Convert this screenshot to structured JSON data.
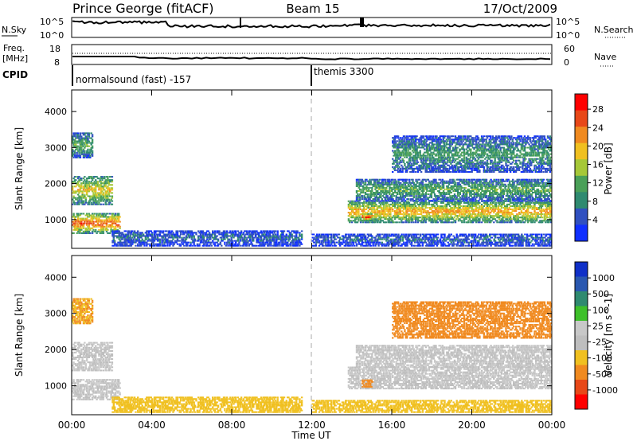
{
  "header": {
    "station": "Prince George (fitACF)",
    "beam": "Beam 15",
    "date": "17/Oct/2009"
  },
  "panels": {
    "nsky": {
      "label": "N.Sky",
      "tick_top": "10^5",
      "tick_bottom": "10^0",
      "right_label": "N.Search",
      "right_tick_top": "10^5",
      "right_tick_bottom": "10^0"
    },
    "freq": {
      "label_line1": "Freq.",
      "label_line2": "[MHz]",
      "tick_top": "18",
      "tick_bottom": "8",
      "right_label": "Nave",
      "right_tick_top": "60",
      "right_tick_bottom": "0"
    },
    "cpid": {
      "label": "CPID",
      "modes": [
        {
          "text": "normalsound (fast) -157",
          "start_hour": 0
        },
        {
          "text": "themis 3300",
          "start_hour": 12
        }
      ]
    }
  },
  "colors": {
    "power_scale": [
      "#1030ff",
      "#3050c0",
      "#2f8a70",
      "#4aa058",
      "#a6c838",
      "#f0c020",
      "#f08a20",
      "#e84818",
      "#ff0000"
    ],
    "velocity_scale": [
      "#ff0000",
      "#e84818",
      "#f08a20",
      "#f0c020",
      "#bebebe",
      "#c8c8c8",
      "#3ec02a",
      "#2f8a70",
      "#2a58b0",
      "#1030c8"
    ]
  },
  "chart_data": [
    {
      "type": "heatmap",
      "title": "",
      "quantity": "Power",
      "xlabel": "",
      "ylabel": "Slant Range [km]",
      "xlim": [
        0,
        24
      ],
      "ylim": [
        200,
        4600
      ],
      "yticks": [
        "1000",
        "2000",
        "3000",
        "4000"
      ],
      "colorbar": {
        "label": "Power [dB]",
        "ticks": [
          "4",
          "8",
          "12",
          "16",
          "20",
          "24",
          "28"
        ]
      },
      "features": [
        {
          "t": [
            0.0,
            2.4
          ],
          "range": [
            600,
            1150
          ],
          "peak": 24
        },
        {
          "t": [
            0.0,
            2.0
          ],
          "range": [
            1400,
            2200
          ],
          "peak": 18
        },
        {
          "t": [
            0.0,
            1.0
          ],
          "range": [
            2700,
            3400
          ],
          "peak": 12
        },
        {
          "t": [
            2.0,
            11.5
          ],
          "range": [
            250,
            700
          ],
          "peak": 6
        },
        {
          "t": [
            13.8,
            24.0
          ],
          "range": [
            900,
            1500
          ],
          "peak": 20
        },
        {
          "t": [
            14.5,
            15.0
          ],
          "range": [
            950,
            1150
          ],
          "peak": 28
        },
        {
          "t": [
            14.2,
            24.0
          ],
          "range": [
            1500,
            2100
          ],
          "peak": 12
        },
        {
          "t": [
            16.0,
            24.0
          ],
          "range": [
            2300,
            3300
          ],
          "peak": 10
        },
        {
          "t": [
            12.0,
            24.0
          ],
          "range": [
            250,
            600
          ],
          "peak": 6
        }
      ]
    },
    {
      "type": "heatmap",
      "title": "",
      "quantity": "Velocity",
      "xlabel": "Time UT",
      "ylabel": "Slant Range [km]",
      "xlim": [
        0,
        24
      ],
      "ylim": [
        200,
        4600
      ],
      "xticks": [
        "00:00",
        "04:00",
        "08:00",
        "12:00",
        "16:00",
        "20:00",
        "00:00"
      ],
      "yticks": [
        "1000",
        "2000",
        "3000",
        "4000"
      ],
      "colorbar": {
        "label": "Velocity [m s^-1]",
        "ticks": [
          "1000",
          "500",
          "100",
          "25",
          "-25",
          "-100",
          "-500",
          "-1000"
        ]
      },
      "features": [
        {
          "t": [
            0.0,
            2.4
          ],
          "range": [
            600,
            1150
          ],
          "value": 0
        },
        {
          "t": [
            0.0,
            2.0
          ],
          "range": [
            1400,
            2200
          ],
          "value": 0
        },
        {
          "t": [
            0.0,
            1.0
          ],
          "range": [
            2700,
            3400
          ],
          "value": -100
        },
        {
          "t": [
            2.0,
            11.5
          ],
          "range": [
            250,
            700
          ],
          "value": -60
        },
        {
          "t": [
            13.8,
            24.0
          ],
          "range": [
            900,
            1500
          ],
          "value": 0
        },
        {
          "t": [
            14.5,
            15.0
          ],
          "range": [
            950,
            1150
          ],
          "value": -150
        },
        {
          "t": [
            14.2,
            24.0
          ],
          "range": [
            1500,
            2100
          ],
          "value": 0
        },
        {
          "t": [
            16.0,
            24.0
          ],
          "range": [
            2300,
            3300
          ],
          "value": -200
        },
        {
          "t": [
            12.0,
            24.0
          ],
          "range": [
            250,
            600
          ],
          "value": -60
        }
      ]
    }
  ]
}
